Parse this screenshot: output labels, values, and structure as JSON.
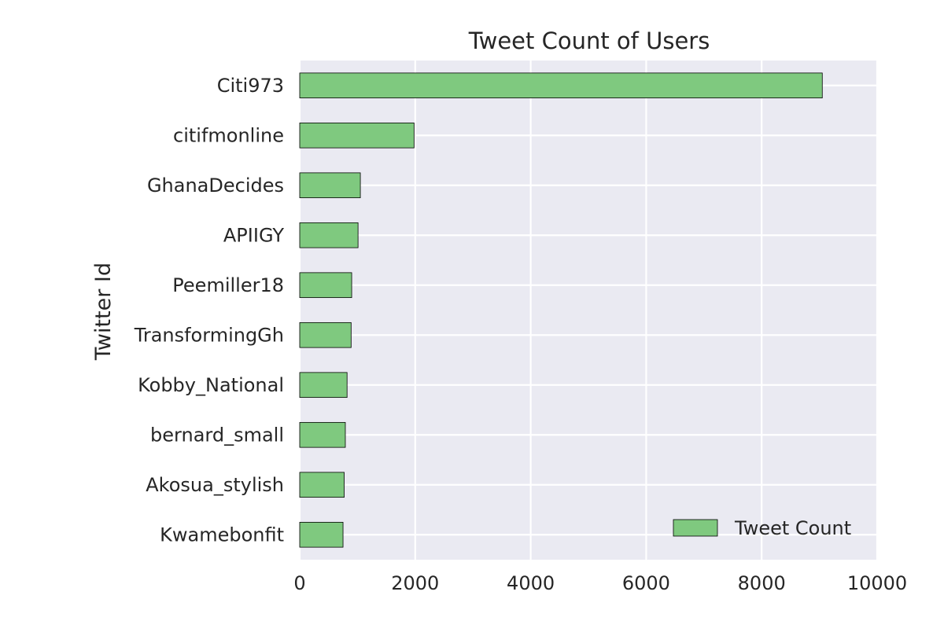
{
  "chart_data": {
    "type": "bar",
    "orientation": "horizontal",
    "title": "Tweet Count of Users",
    "xlabel": "",
    "ylabel": "Twitter Id",
    "categories": [
      "Citi973",
      "citifmonline",
      "GhanaDecides",
      "APIIGY",
      "Peemiller18",
      "TransformingGh",
      "Kobby_National",
      "bernard_small",
      "Akosua_stylish",
      "Kwamebonfit"
    ],
    "series": [
      {
        "name": "Tweet Count",
        "values": [
          9050,
          1980,
          1050,
          1010,
          900,
          890,
          820,
          790,
          770,
          750
        ]
      }
    ],
    "xlim": [
      0,
      10000
    ],
    "xticks": [
      0,
      2000,
      4000,
      6000,
      8000,
      10000
    ],
    "grid": true,
    "legend": "lower-right"
  },
  "colors": {
    "bar": "#7fc97f",
    "bar_edge": "#000000",
    "plot_background": "#eaeaf2",
    "grid": "#ffffff",
    "text": "#262626"
  }
}
